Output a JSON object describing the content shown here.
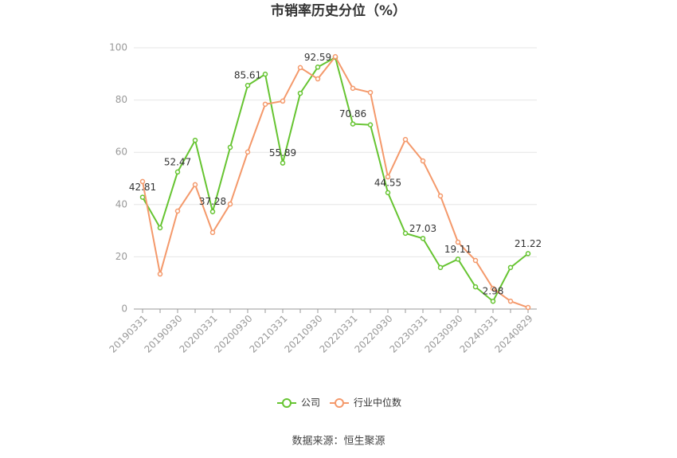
{
  "chart_data": {
    "type": "line",
    "title": "市销率历史分位（%）",
    "source": "数据来源：恒生聚源",
    "categories": [
      "20190331",
      null,
      "20190930",
      null,
      "20200331",
      null,
      "20200930",
      null,
      "20210331",
      null,
      "20210930",
      null,
      "20220331",
      null,
      "20220930",
      null,
      "20230331",
      null,
      "20230930",
      null,
      "20240331",
      null,
      "20240829"
    ],
    "series": [
      {
        "name": "公司",
        "color": "#66c431",
        "values": [
          42.81,
          31.1,
          52.47,
          64.6,
          37.28,
          61.9,
          85.61,
          89.9,
          55.89,
          82.6,
          92.59,
          96.3,
          70.86,
          70.5,
          44.55,
          29.0,
          27.03,
          15.9,
          19.11,
          8.5,
          2.98,
          15.9,
          21.22
        ]
      },
      {
        "name": "行业中位数",
        "color": "#f4996b",
        "values": [
          48.8,
          13.4,
          37.5,
          47.6,
          29.3,
          40.2,
          60.1,
          78.4,
          79.6,
          92.4,
          88.1,
          96.6,
          84.5,
          82.9,
          50.6,
          64.9,
          56.7,
          43.3,
          25.6,
          18.6,
          7.9,
          3.0,
          0.6
        ]
      }
    ],
    "ylim": [
      0,
      100
    ],
    "yticks": [
      0,
      20,
      40,
      60,
      80,
      100
    ],
    "grid": true
  }
}
